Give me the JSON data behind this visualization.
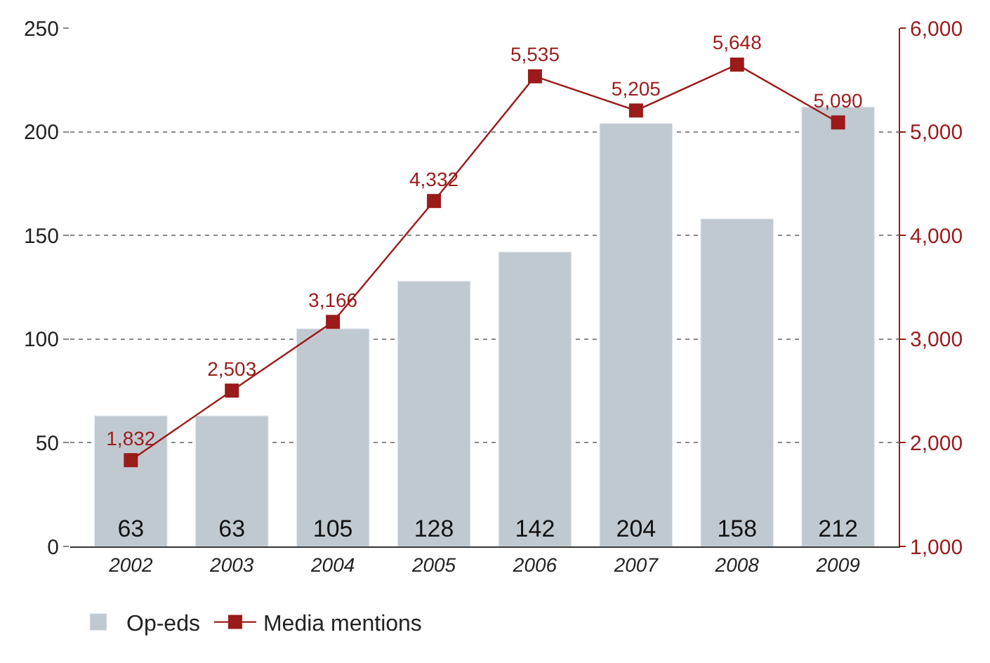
{
  "chart_data": {
    "type": "bar",
    "categories": [
      "2002",
      "2003",
      "2004",
      "2005",
      "2006",
      "2007",
      "2008",
      "2009"
    ],
    "series": [
      {
        "name": "Op-eds",
        "color": "#c1c9d0",
        "values": [
          63,
          63,
          105,
          128,
          142,
          204,
          158,
          212
        ],
        "value_labels": [
          "63",
          "63",
          "105",
          "128",
          "142",
          "204",
          "158",
          "212"
        ]
      },
      {
        "name": "Media mentions",
        "type": "line",
        "axis": "y2",
        "color": "#9b1a1a",
        "marker": "square",
        "values": [
          1832,
          2503,
          3166,
          4332,
          5535,
          5205,
          5648,
          5090
        ],
        "value_labels": [
          "1,832",
          "2,503",
          "3,166",
          "4,332",
          "5,535",
          "5,205",
          "5,648",
          "5,090"
        ]
      }
    ],
    "ylim": [
      0,
      250
    ],
    "yticks": [
      0,
      50,
      100,
      150,
      200,
      250
    ],
    "y2lim": [
      1000,
      6000
    ],
    "y2ticks": [
      {
        "value": 1000,
        "label": "1,000"
      },
      {
        "value": 2000,
        "label": "2,000"
      },
      {
        "value": 3000,
        "label": "3,000"
      },
      {
        "value": 4000,
        "label": "4,000"
      },
      {
        "value": 5000,
        "label": "5,000"
      },
      {
        "value": 6000,
        "label": "6,000"
      }
    ],
    "grid": "y",
    "legend": "bottom left"
  }
}
